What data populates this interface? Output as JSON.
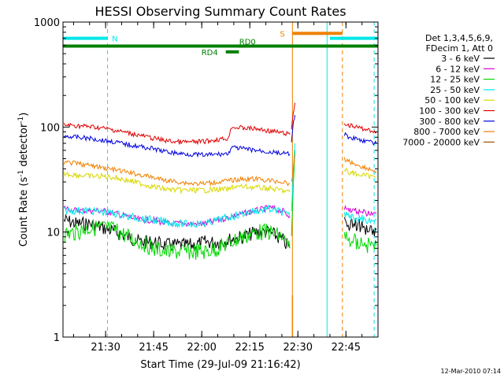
{
  "chart_data": {
    "type": "line",
    "title": "HESSI Observing Summary Count Rates",
    "xlabel": "Start Time (29-Jul-09 21:16:42)",
    "ylabel_parts": [
      "Count Rate (s",
      "-1",
      " detector",
      "-1",
      ")"
    ],
    "yscale": "log",
    "ylim": [
      1,
      1000
    ],
    "xlim_min": [
      1276.7,
      1375.0
    ],
    "xticks": [
      {
        "min": 1290,
        "label": "21:30"
      },
      {
        "min": 1305,
        "label": "21:45"
      },
      {
        "min": 1320,
        "label": "22:00"
      },
      {
        "min": 1335,
        "label": "22:15"
      },
      {
        "min": 1350,
        "label": "22:30"
      },
      {
        "min": 1365,
        "label": "22:45"
      }
    ],
    "yticks": [
      {
        "value": 1,
        "label": "1"
      },
      {
        "value": 10,
        "label": "10"
      },
      {
        "value": 100,
        "label": "100"
      },
      {
        "value": 1000,
        "label": "1000"
      }
    ],
    "legend_header": [
      "Det 1,3,4,5,6,9,",
      "FDecim 1, Att 0"
    ],
    "legend_position": "right",
    "series": [
      {
        "name": "3 - 6 keV",
        "color": "#000000",
        "x": [
          1277,
          1281,
          1285,
          1289,
          1293,
          1297,
          1301,
          1305,
          1309,
          1313,
          1317,
          1321,
          1325,
          1329,
          1333,
          1337,
          1341,
          1345,
          1347.5
        ],
        "y": [
          13,
          12,
          12,
          11,
          10,
          9,
          8,
          8,
          7.5,
          7.5,
          7.5,
          8,
          8,
          8.5,
          9,
          10,
          10,
          8.5,
          7
        ]
      },
      {
        "name": "6 - 12 keV",
        "color": "#d800d8",
        "x": [
          1277,
          1281,
          1285,
          1289,
          1293,
          1297,
          1301,
          1305,
          1309,
          1313,
          1317,
          1321,
          1325,
          1329,
          1333,
          1337,
          1341,
          1345,
          1347.5
        ],
        "y": [
          17,
          16,
          16,
          16,
          15,
          14,
          13,
          13,
          12,
          12,
          12,
          12,
          13,
          14,
          15,
          16,
          17,
          16,
          14
        ]
      },
      {
        "name": "12 - 25 keV",
        "color": "#00d800",
        "x": [
          1277,
          1281,
          1285,
          1289,
          1293,
          1297,
          1301,
          1305,
          1309,
          1313,
          1317,
          1321,
          1325,
          1329,
          1333,
          1337,
          1341,
          1345,
          1347.5
        ],
        "y": [
          9.5,
          10,
          11,
          11,
          10.5,
          9,
          8,
          7,
          6.5,
          6.5,
          6.5,
          6.5,
          7,
          8,
          9,
          10,
          10,
          9,
          7
        ]
      },
      {
        "name": "25 - 50 keV",
        "color": "#00e8e8",
        "x": [
          1277,
          1281,
          1285,
          1289,
          1293,
          1297,
          1301,
          1305,
          1309,
          1313,
          1317,
          1321,
          1325,
          1329,
          1333,
          1337,
          1341,
          1345,
          1347.5
        ],
        "y": [
          16,
          16,
          16,
          15.5,
          15,
          14,
          13.5,
          13,
          12.5,
          12,
          12,
          12,
          13,
          14,
          15,
          16,
          16.5,
          15.5,
          14
        ]
      },
      {
        "name": "50 - 100 keV",
        "color": "#d8d800",
        "x": [
          1277,
          1281,
          1285,
          1289,
          1293,
          1297,
          1301,
          1305,
          1309,
          1313,
          1317,
          1321,
          1325,
          1329,
          1329.5,
          1333,
          1337,
          1341,
          1345,
          1347.5
        ],
        "y": [
          36,
          35,
          34,
          34,
          33,
          31,
          29,
          27,
          25.5,
          25,
          25,
          25,
          25.5,
          25.5,
          27,
          27,
          26.5,
          26,
          25,
          24
        ]
      },
      {
        "name": "100 - 300 keV",
        "color": "#e00000",
        "x": [
          1277,
          1281,
          1285,
          1289,
          1293,
          1297,
          1301,
          1305,
          1309,
          1313,
          1317,
          1321,
          1325,
          1328.5,
          1329,
          1333,
          1337,
          1341,
          1345,
          1347.5
        ],
        "y": [
          105,
          103,
          101,
          98,
          93,
          88,
          83,
          78,
          74,
          72,
          72,
          73,
          76,
          78,
          100,
          98,
          96,
          92,
          88,
          85
        ]
      },
      {
        "name": "300 - 800 keV",
        "color": "#0000e0",
        "x": [
          1277,
          1281,
          1285,
          1289,
          1293,
          1297,
          1301,
          1305,
          1309,
          1313,
          1317,
          1321,
          1325,
          1328.5,
          1329,
          1333,
          1337,
          1341,
          1345,
          1347.5
        ],
        "y": [
          82,
          80,
          78,
          75,
          72,
          68,
          65,
          62,
          58,
          56,
          55,
          54,
          55,
          56,
          64,
          62,
          60,
          58,
          56,
          55
        ]
      },
      {
        "name": "800 - 7000 keV",
        "color": "#f08000",
        "x": [
          1277,
          1281,
          1285,
          1289,
          1293,
          1297,
          1301,
          1305,
          1309,
          1313,
          1317,
          1321,
          1325,
          1329,
          1333,
          1337,
          1341,
          1345,
          1347.5
        ],
        "y": [
          46,
          45,
          43,
          41,
          39,
          37,
          35,
          33,
          31,
          30,
          29,
          29,
          30,
          31,
          32,
          32,
          31,
          30,
          29
        ]
      },
      {
        "name": "7000 - 20000 keV",
        "color": "#a05000",
        "x": [],
        "y": []
      }
    ],
    "flare_series": [
      {
        "series": "300 - 800 keV",
        "x": [
          1348,
          1348.6,
          1349.1
        ],
        "y": [
          70,
          110,
          130
        ]
      },
      {
        "series": "100 - 300 keV",
        "x": [
          1348,
          1348.6,
          1349.1
        ],
        "y": [
          95,
          140,
          170
        ]
      },
      {
        "series": "12 - 25 keV",
        "x": [
          1348,
          1348.6,
          1349.1
        ],
        "y": [
          9,
          30,
          60
        ]
      },
      {
        "series": "25 - 50 keV",
        "x": [
          1348,
          1348.6,
          1349.1
        ],
        "y": [
          16,
          40,
          70
        ]
      },
      {
        "series": "800 - 7000 keV",
        "x": [
          1348,
          1348.6,
          1349.1
        ],
        "y": [
          30,
          40,
          55
        ]
      }
    ],
    "after_gap_series": [
      {
        "series": "3 - 6 keV",
        "x": [
          1364.5,
          1366,
          1368,
          1370,
          1372,
          1374.5
        ],
        "y": [
          13,
          12,
          12,
          11,
          11,
          10.5
        ]
      },
      {
        "series": "6 - 12 keV",
        "x": [
          1364.5,
          1366,
          1368,
          1370,
          1372,
          1374.5
        ],
        "y": [
          17,
          16.5,
          16,
          15.5,
          15,
          15
        ]
      },
      {
        "series": "12 - 25 keV",
        "x": [
          1364.5,
          1366,
          1368,
          1370,
          1372,
          1374.5
        ],
        "y": [
          9,
          8.5,
          8,
          8,
          7.5,
          7.5
        ]
      },
      {
        "series": "25 - 50 keV",
        "x": [
          1364.5,
          1366,
          1368,
          1370,
          1372,
          1374.5
        ],
        "y": [
          15,
          14,
          13.5,
          13.5,
          13,
          13
        ]
      },
      {
        "series": "50 - 100 keV",
        "x": [
          1364.5,
          1366,
          1368,
          1370,
          1372,
          1374.5
        ],
        "y": [
          39,
          37,
          36,
          35,
          34,
          33
        ]
      },
      {
        "series": "100 - 300 keV",
        "x": [
          1364.5,
          1366,
          1368,
          1370,
          1372,
          1374.5
        ],
        "y": [
          110,
          105,
          100,
          97,
          94,
          90
        ]
      },
      {
        "series": "300 - 800 keV",
        "x": [
          1364.5,
          1366,
          1368,
          1370,
          1372,
          1374.5
        ],
        "y": [
          85,
          80,
          78,
          75,
          72,
          70
        ]
      },
      {
        "series": "800 - 7000 keV",
        "x": [
          1364.5,
          1366,
          1368,
          1370,
          1372,
          1374.5
        ],
        "y": [
          50,
          47,
          44,
          42,
          40,
          38
        ]
      }
    ],
    "state_bars": [
      {
        "label": "N",
        "color": "#00e8e8",
        "x": [
          1276.7,
          1290.5
        ],
        "y": 700
      },
      {
        "label": "",
        "color": "#00e8e8",
        "x": [
          1360.0,
          1375.0
        ],
        "y": 700
      },
      {
        "label": "S",
        "color": "#f08000",
        "x": [
          1348.3,
          1363.9
        ],
        "y": 780
      },
      {
        "label": "",
        "color": "#008000",
        "x": [
          1276.7,
          1375.0
        ],
        "y": 590
      },
      {
        "label": "RD0",
        "color": "#008000",
        "x": [
          1331.2,
          1333.6
        ],
        "y": 590
      },
      {
        "label": "RD4",
        "color": "#008000",
        "x": [
          1327.5,
          1331.6
        ],
        "y": 520
      }
    ],
    "vertical_markers": [
      {
        "x": 1290.6,
        "color": "#00e8e8",
        "style": "dashed"
      },
      {
        "x": 1359.1,
        "color": "#00e8e8",
        "style": "solid"
      },
      {
        "x": 1373.8,
        "color": "#00e8e8",
        "style": "dashed"
      },
      {
        "x": 1348.3,
        "color": "#f08000",
        "style": "solid"
      },
      {
        "x": 1363.9,
        "color": "#f08000",
        "style": "dashed"
      }
    ]
  },
  "footer": {
    "date": "12-Mar-2010 07:14"
  }
}
